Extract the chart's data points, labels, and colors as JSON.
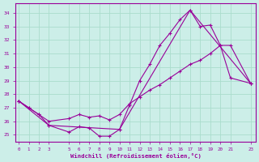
{
  "bg_color": "#cceee8",
  "grid_color": "#aaddcc",
  "line_color": "#990099",
  "xlabel": "Windchill (Refroidissement éolien,°C)",
  "xlim": [
    -0.3,
    23.5
  ],
  "ylim": [
    24.5,
    34.7
  ],
  "yticks": [
    25,
    26,
    27,
    28,
    29,
    30,
    31,
    32,
    33,
    34
  ],
  "xticks": [
    0,
    1,
    2,
    3,
    5,
    6,
    7,
    8,
    9,
    10,
    11,
    12,
    13,
    14,
    15,
    16,
    17,
    18,
    19,
    20,
    21,
    23
  ],
  "series1": [
    [
      0,
      27.5
    ],
    [
      1,
      27.0
    ],
    [
      2,
      26.5
    ],
    [
      3,
      25.7
    ],
    [
      5,
      25.2
    ],
    [
      6,
      25.6
    ],
    [
      7,
      25.5
    ],
    [
      8,
      24.9
    ],
    [
      9,
      24.9
    ],
    [
      10,
      25.4
    ],
    [
      11,
      27.2
    ],
    [
      12,
      29.0
    ],
    [
      13,
      30.2
    ],
    [
      14,
      31.6
    ],
    [
      15,
      32.5
    ],
    [
      16,
      33.5
    ],
    [
      17,
      34.2
    ],
    [
      18,
      33.0
    ],
    [
      19,
      33.1
    ],
    [
      20,
      31.6
    ],
    [
      21,
      29.2
    ],
    [
      23,
      28.8
    ]
  ],
  "series2": [
    [
      0,
      27.5
    ],
    [
      1,
      27.0
    ],
    [
      2,
      26.5
    ],
    [
      3,
      26.0
    ],
    [
      5,
      26.2
    ],
    [
      6,
      26.5
    ],
    [
      7,
      26.3
    ],
    [
      8,
      26.4
    ],
    [
      9,
      26.1
    ],
    [
      10,
      26.5
    ],
    [
      11,
      27.3
    ],
    [
      12,
      27.8
    ],
    [
      13,
      28.3
    ],
    [
      14,
      28.7
    ],
    [
      15,
      29.2
    ],
    [
      16,
      29.7
    ],
    [
      17,
      30.2
    ],
    [
      18,
      30.5
    ],
    [
      19,
      31.0
    ],
    [
      20,
      31.6
    ],
    [
      21,
      31.6
    ],
    [
      23,
      28.8
    ]
  ],
  "series3": [
    [
      0,
      27.5
    ],
    [
      3,
      25.7
    ],
    [
      10,
      25.4
    ],
    [
      17,
      34.2
    ],
    [
      23,
      28.8
    ]
  ]
}
